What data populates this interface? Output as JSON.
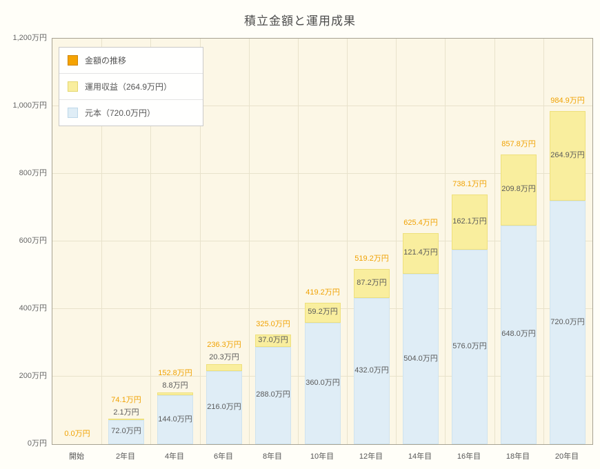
{
  "chart_data": {
    "type": "bar",
    "stacked": true,
    "title": "積立金額と運用成果",
    "xlabel": "",
    "ylabel": "",
    "ylim": [
      0,
      1200
    ],
    "grid": true,
    "legend_position": "top-left",
    "categories": [
      "開始",
      "2年目",
      "4年目",
      "6年目",
      "8年目",
      "10年目",
      "12年目",
      "14年目",
      "16年目",
      "18年目",
      "20年目"
    ],
    "series": [
      {
        "name": "元本（720.0万円）",
        "color": "#dfedf6",
        "border_color": "#cfe3ef",
        "values": [
          0,
          72.0,
          144.0,
          216.0,
          288.0,
          360.0,
          432.0,
          504.0,
          576.0,
          648.0,
          720.0
        ],
        "labels": [
          "",
          "72.0万円",
          "144.0万円",
          "216.0万円",
          "288.0万円",
          "360.0万円",
          "432.0万円",
          "504.0万円",
          "576.0万円",
          "648.0万円",
          "720.0万円"
        ]
      },
      {
        "name": "運用収益（264.9万円）",
        "color": "#f9ee9e",
        "border_color": "#eee07c",
        "values": [
          0,
          2.1,
          8.8,
          20.3,
          37.0,
          59.2,
          87.2,
          121.4,
          162.1,
          209.8,
          264.9
        ],
        "labels": [
          "",
          "2.1万円",
          "8.8万円",
          "20.3万円",
          "37.0万円",
          "59.2万円",
          "87.2万円",
          "121.4万円",
          "162.1万円",
          "209.8万円",
          "264.9万円"
        ]
      }
    ],
    "totals": [
      0.0,
      74.1,
      152.8,
      236.3,
      325.0,
      419.2,
      519.2,
      625.4,
      738.1,
      857.8,
      984.9
    ],
    "total_labels": [
      "0.0万円",
      "74.1万円",
      "152.8万円",
      "236.3万円",
      "325.0万円",
      "419.2万円",
      "519.2万円",
      "625.4万円",
      "738.1万円",
      "857.8万円",
      "984.9万円"
    ]
  },
  "axes": {
    "y_ticks": [
      "0万円",
      "200万円",
      "400万円",
      "600万円",
      "800万円",
      "1,000万円",
      "1,200万円"
    ],
    "y_values": [
      0,
      200,
      400,
      600,
      800,
      1000,
      1200
    ],
    "y_max": 1200
  },
  "legend": {
    "items": [
      {
        "key": "total",
        "label": "金額の推移",
        "color": "#f5a302",
        "border_color": "#cd8300"
      },
      {
        "key": "profit",
        "label": "運用収益（264.9万円）",
        "color": "#f9ee9e",
        "border_color": "#e3d66e"
      },
      {
        "key": "principal",
        "label": "元本（720.0万円）",
        "color": "#dfedf6",
        "border_color": "#bdd8e9"
      }
    ]
  },
  "colors": {
    "total_label": "#f0a202",
    "segment_label": "#5a5a5a",
    "page_background": "#fffef8",
    "plot_background": "#fcf7e6",
    "grid_line": "#e8e2cb",
    "plot_border": "#a6a292"
  }
}
